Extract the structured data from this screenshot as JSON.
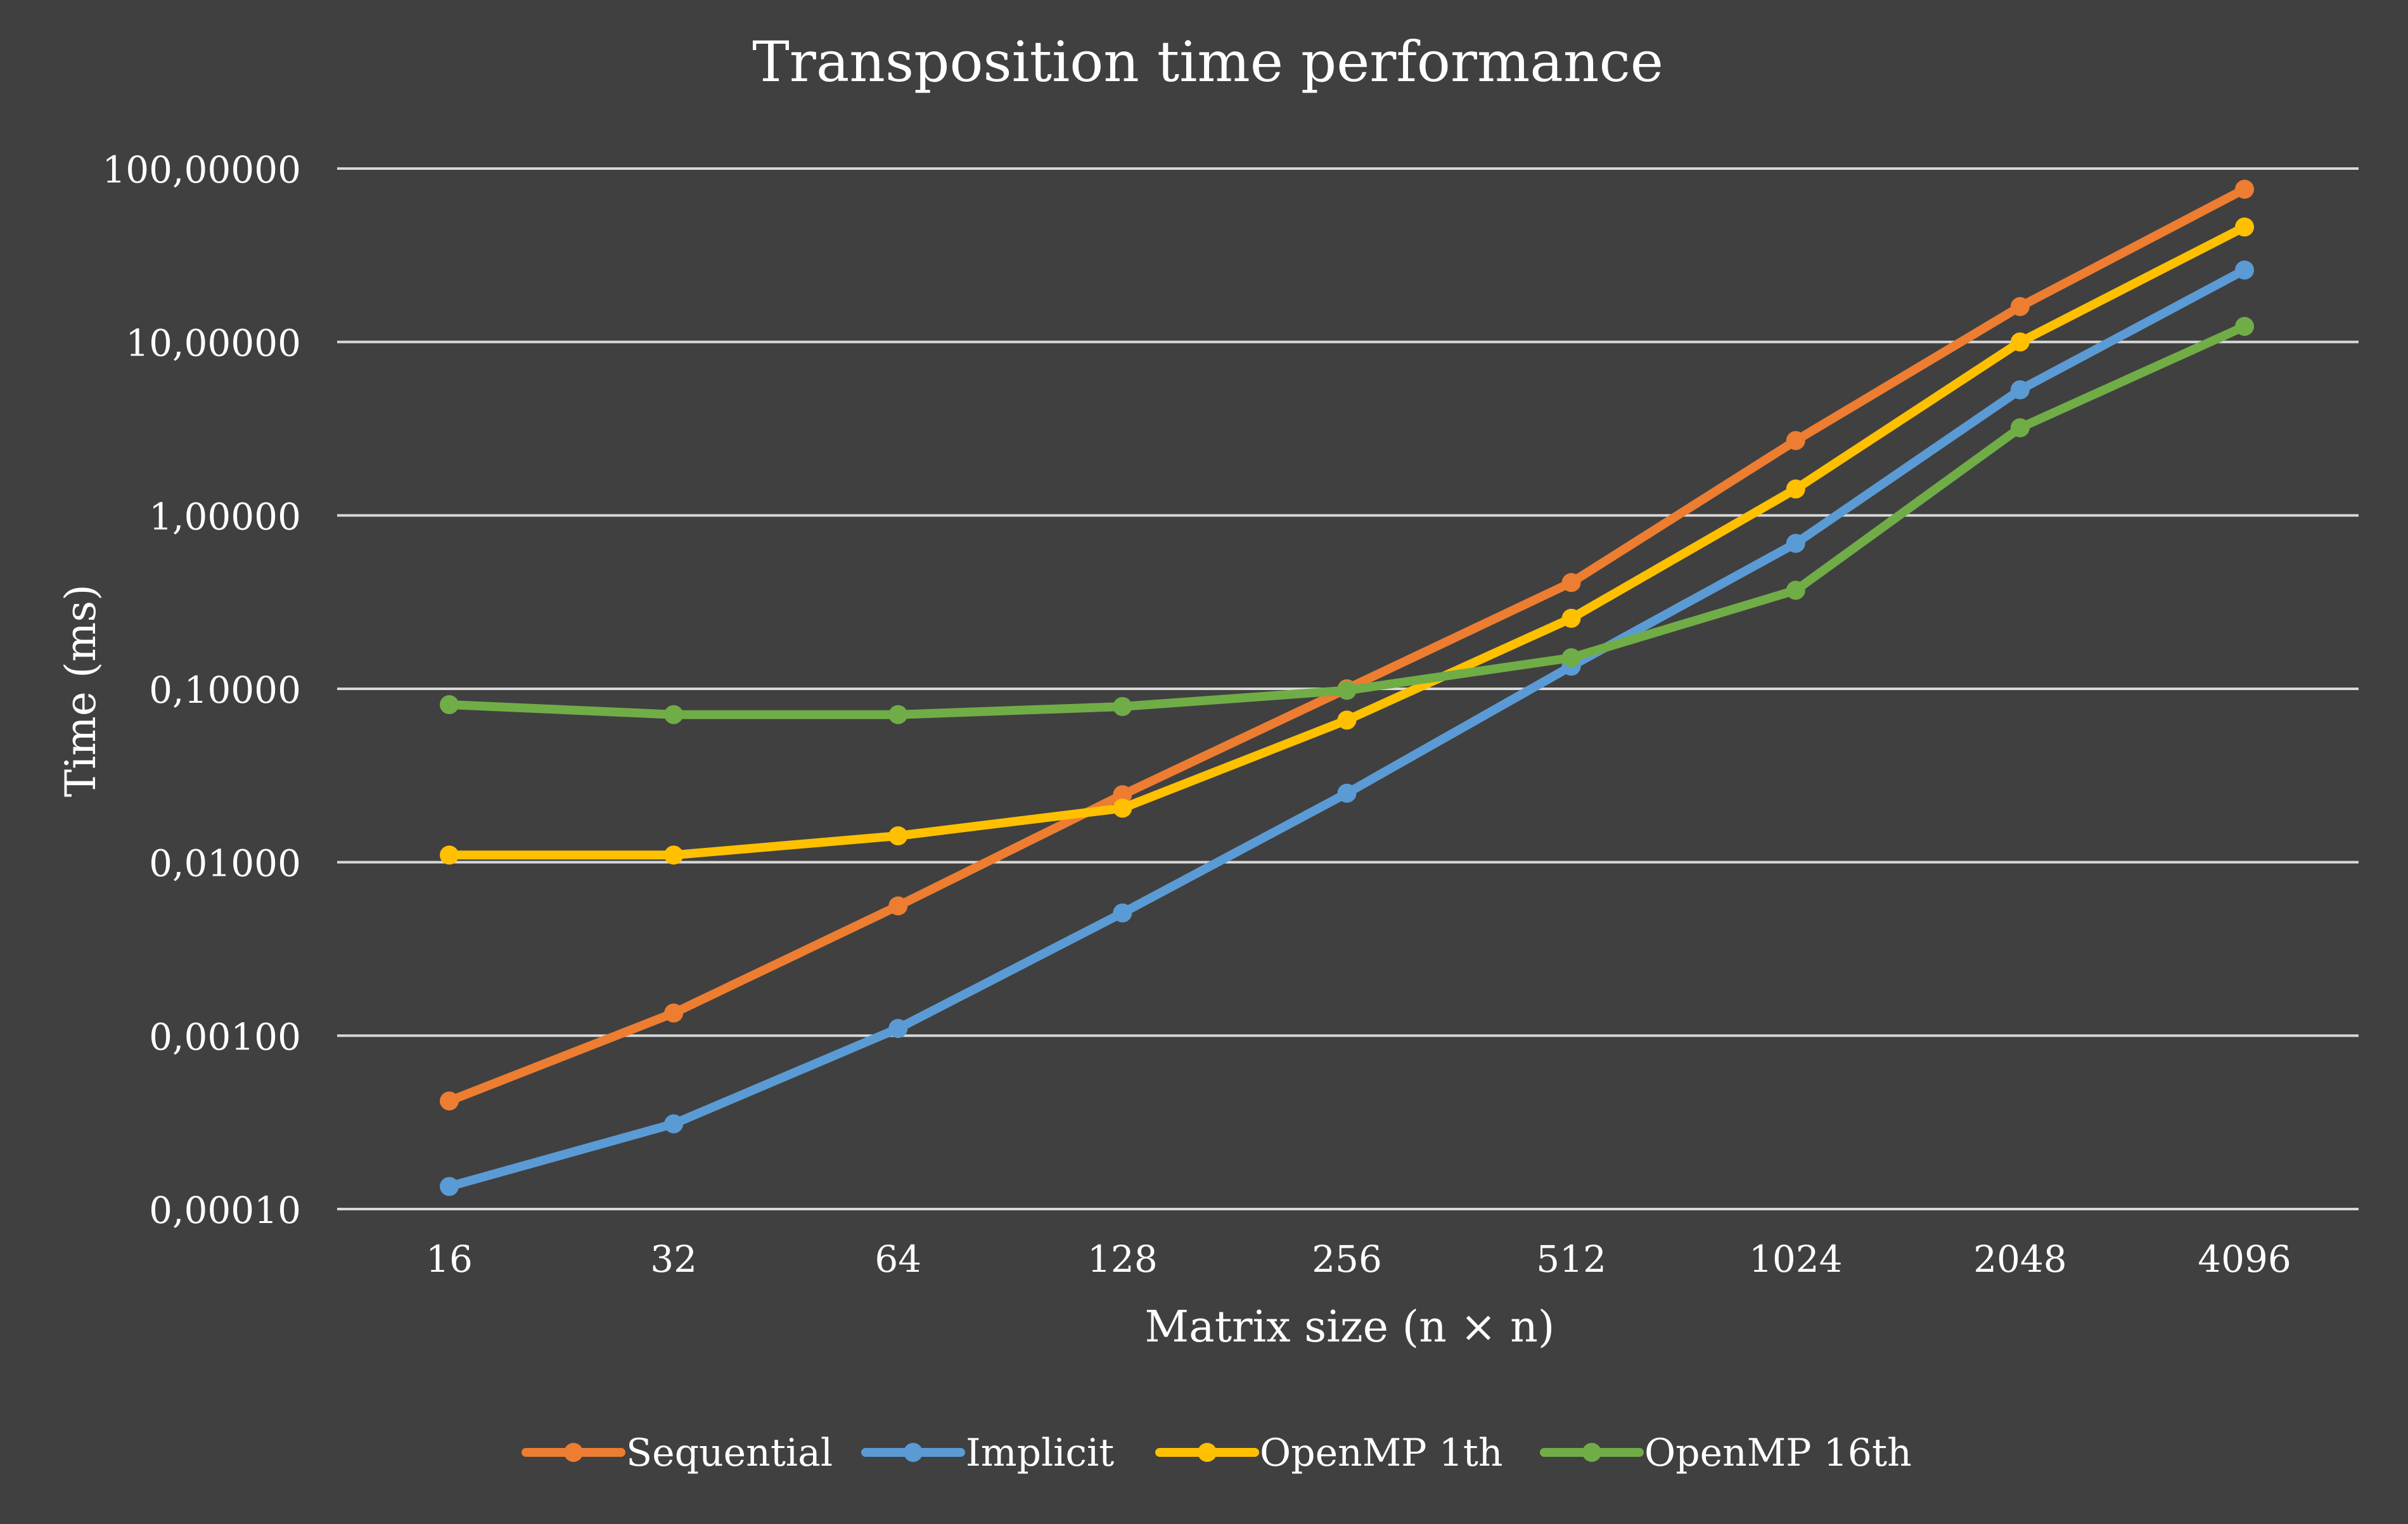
{
  "chart_data": {
    "type": "line",
    "title": "Transposition time performance",
    "xlabel": "Matrix size (n × n)",
    "ylabel": "Time (ms)",
    "y_scale": "log",
    "ylim": [
      0.0001,
      100
    ],
    "grid": true,
    "legend_position": "bottom",
    "y_tick_labels": [
      "100,00000",
      "10,00000",
      "1,00000",
      "0,10000",
      "0,01000",
      "0,00100",
      "0,00010"
    ],
    "categories": [
      "16",
      "32",
      "64",
      "128",
      "256",
      "512",
      "1024",
      "2048",
      "4096"
    ],
    "series": [
      {
        "name": "Sequential",
        "color": "#ED7D31",
        "values": [
          0.00042,
          0.00135,
          0.0056,
          0.0245,
          0.1,
          0.41,
          2.7,
          16,
          76
        ]
      },
      {
        "name": "Implicit",
        "color": "#5B9BD5",
        "values": [
          0.000135,
          0.00031,
          0.0011,
          0.0051,
          0.025,
          0.135,
          0.69,
          5.3,
          26
        ]
      },
      {
        "name": "OpenMP 1th",
        "color": "#FFC000",
        "values": [
          0.011,
          0.011,
          0.0142,
          0.0205,
          0.066,
          0.255,
          1.42,
          10,
          46
        ]
      },
      {
        "name": "OpenMP 16th",
        "color": "#70AD47",
        "values": [
          0.081,
          0.071,
          0.071,
          0.079,
          0.098,
          0.151,
          0.37,
          3.2,
          12.3
        ]
      }
    ]
  }
}
